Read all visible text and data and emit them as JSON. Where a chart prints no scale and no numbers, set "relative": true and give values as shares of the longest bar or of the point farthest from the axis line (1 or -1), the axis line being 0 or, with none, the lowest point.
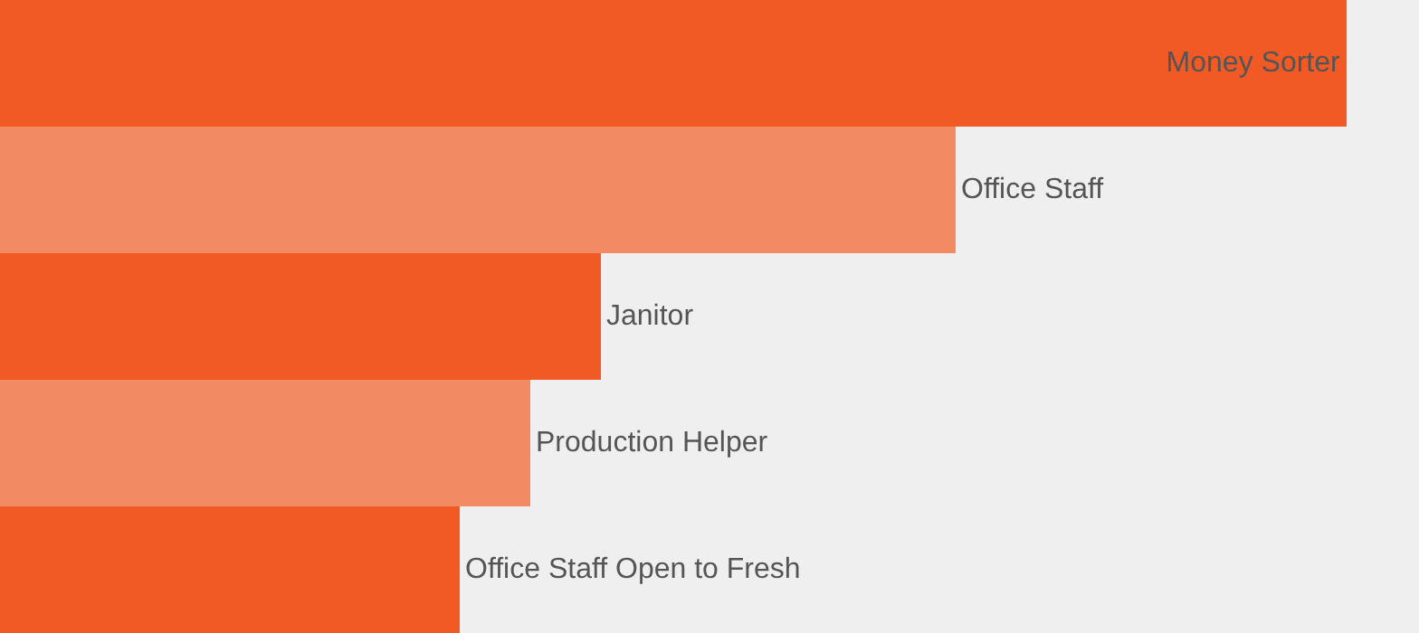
{
  "chart_data": {
    "type": "bar",
    "orientation": "horizontal",
    "relative": true,
    "categories": [
      "Money Sorter",
      "Office Staff",
      "Janitor",
      "Production Helper",
      "Office Staff Open to Fresh"
    ],
    "values": [
      1,
      0.71,
      0.446,
      0.394,
      0.341
    ],
    "colors": [
      "#f15a24",
      "#f28b63",
      "#f15a24",
      "#f28b63",
      "#f15a24"
    ],
    "legend": false
  }
}
